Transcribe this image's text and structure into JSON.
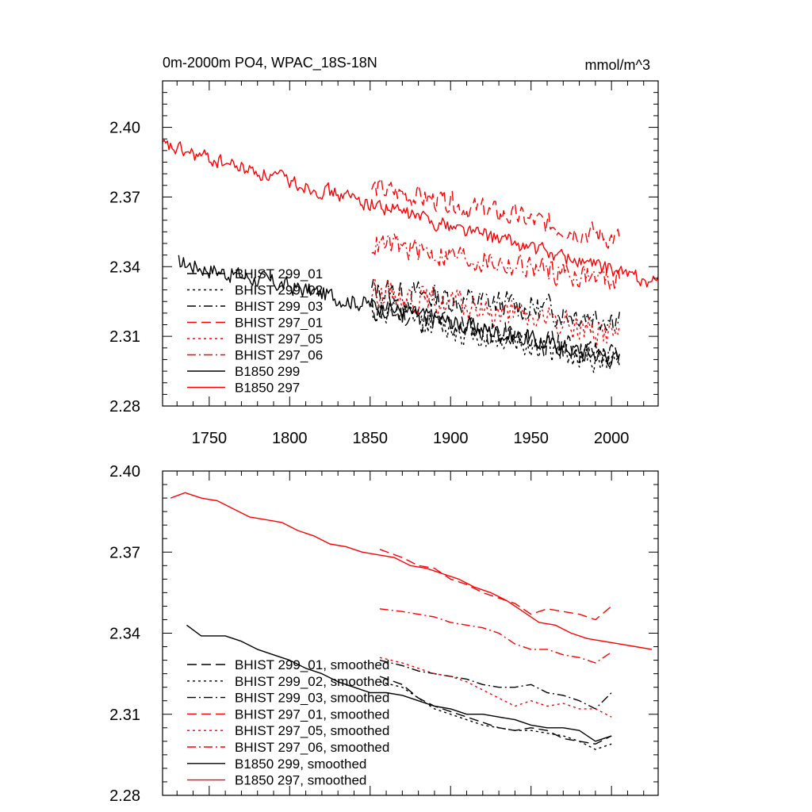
{
  "chart_data": [
    {
      "type": "line",
      "title": "0m-2000m PO4, WPAC_18S-18N",
      "units": "mmol/m^3",
      "xlim": [
        1721,
        2029
      ],
      "ylim": [
        2.28,
        2.42
      ],
      "x_ticks": [
        1750,
        1800,
        1850,
        1900,
        1950,
        2000
      ],
      "x_tick_labels": [
        "1750",
        "1800",
        "1850",
        "1900",
        "1950",
        "2000"
      ],
      "y_ticks": [
        2.28,
        2.31,
        2.34,
        2.37,
        2.4
      ],
      "y_tick_labels": [
        "2.28",
        "2.31",
        "2.34",
        "2.37",
        "2.40"
      ],
      "legend_position": "lower-left",
      "series": [
        {
          "name": "BHIST 299_01",
          "color": "#000000",
          "dash": "dash",
          "x_start": 1851,
          "x_end": 2005,
          "start": 2.322,
          "end": 2.301,
          "noise": 0.0055,
          "seed": 11
        },
        {
          "name": "BHIST 299_02",
          "color": "#000000",
          "dash": "dot",
          "x_start": 1851,
          "x_end": 2005,
          "start": 2.321,
          "end": 2.298,
          "noise": 0.0055,
          "seed": 12
        },
        {
          "name": "BHIST 299_03",
          "color": "#000000",
          "dash": "dashdot",
          "x_start": 1851,
          "x_end": 2005,
          "start": 2.33,
          "end": 2.318,
          "noise": 0.0055,
          "seed": 13
        },
        {
          "name": "BHIST 297_01",
          "color": "#ff0000",
          "dash": "dash",
          "x_start": 1851,
          "x_end": 2005,
          "start": 2.374,
          "end": 2.352,
          "noise": 0.0045,
          "seed": 14
        },
        {
          "name": "BHIST 297_05",
          "color": "#ff0000",
          "dash": "dot",
          "x_start": 1851,
          "x_end": 2005,
          "start": 2.33,
          "end": 2.311,
          "noise": 0.0055,
          "seed": 15
        },
        {
          "name": "BHIST 297_06",
          "color": "#ff0000",
          "dash": "dashdot",
          "x_start": 1851,
          "x_end": 2005,
          "start": 2.35,
          "end": 2.334,
          "noise": 0.005,
          "seed": 16
        },
        {
          "name": "B1850 299",
          "color": "#000000",
          "dash": "solid",
          "x_start": 1731,
          "x_end": 2005,
          "start": 2.342,
          "end": 2.3,
          "noise": 0.0035,
          "seed": 17
        },
        {
          "name": "B1850 297",
          "color": "#ff0000",
          "dash": "solid",
          "x_start": 1721,
          "x_end": 2029,
          "start": 2.392,
          "end": 2.333,
          "noise": 0.003,
          "seed": 18
        }
      ]
    },
    {
      "type": "line",
      "xlim": [
        1721,
        2029
      ],
      "ylim": [
        2.28,
        2.4
      ],
      "y_ticks": [
        2.28,
        2.31,
        2.34,
        2.37,
        2.4
      ],
      "y_tick_labels": [
        "2.28",
        "2.31",
        "2.34",
        "2.37",
        "2.40"
      ],
      "x_ticks": [
        1750,
        1800,
        1850,
        1900,
        1950,
        2000
      ],
      "legend_position": "lower-left",
      "series": [
        {
          "name": "BHIST 299_01, smoothed",
          "color": "#000000",
          "dash": "dash",
          "points": [
            [
              1856,
              2.324
            ],
            [
              1870,
              2.321
            ],
            [
              1880,
              2.316
            ],
            [
              1890,
              2.313
            ],
            [
              1900,
              2.311
            ],
            [
              1910,
              2.309
            ],
            [
              1920,
              2.307
            ],
            [
              1930,
              2.305
            ],
            [
              1940,
              2.304
            ],
            [
              1950,
              2.305
            ],
            [
              1960,
              2.304
            ],
            [
              1970,
              2.301
            ],
            [
              1980,
              2.3
            ],
            [
              1990,
              2.299
            ],
            [
              2000,
              2.302
            ]
          ]
        },
        {
          "name": "BHIST 299_02, smoothed",
          "color": "#000000",
          "dash": "dot",
          "points": [
            [
              1856,
              2.322
            ],
            [
              1870,
              2.32
            ],
            [
              1880,
              2.316
            ],
            [
              1890,
              2.312
            ],
            [
              1900,
              2.31
            ],
            [
              1910,
              2.308
            ],
            [
              1920,
              2.306
            ],
            [
              1930,
              2.305
            ],
            [
              1940,
              2.304
            ],
            [
              1950,
              2.304
            ],
            [
              1960,
              2.303
            ],
            [
              1970,
              2.302
            ],
            [
              1980,
              2.3
            ],
            [
              1990,
              2.297
            ],
            [
              2000,
              2.299
            ]
          ]
        },
        {
          "name": "BHIST 299_03, smoothed",
          "color": "#000000",
          "dash": "dashdot",
          "points": [
            [
              1856,
              2.33
            ],
            [
              1870,
              2.328
            ],
            [
              1880,
              2.326
            ],
            [
              1890,
              2.325
            ],
            [
              1900,
              2.324
            ],
            [
              1910,
              2.323
            ],
            [
              1920,
              2.321
            ],
            [
              1930,
              2.32
            ],
            [
              1940,
              2.32
            ],
            [
              1950,
              2.321
            ],
            [
              1960,
              2.318
            ],
            [
              1970,
              2.317
            ],
            [
              1980,
              2.315
            ],
            [
              1990,
              2.312
            ],
            [
              2000,
              2.318
            ]
          ]
        },
        {
          "name": "BHIST 297_01, smoothed",
          "color": "#ff0000",
          "dash": "dash",
          "points": [
            [
              1856,
              2.371
            ],
            [
              1870,
              2.368
            ],
            [
              1880,
              2.365
            ],
            [
              1890,
              2.364
            ],
            [
              1900,
              2.36
            ],
            [
              1910,
              2.358
            ],
            [
              1920,
              2.355
            ],
            [
              1930,
              2.353
            ],
            [
              1940,
              2.351
            ],
            [
              1950,
              2.347
            ],
            [
              1960,
              2.349
            ],
            [
              1970,
              2.348
            ],
            [
              1980,
              2.347
            ],
            [
              1990,
              2.345
            ],
            [
              2000,
              2.35
            ]
          ]
        },
        {
          "name": "BHIST 297_05, smoothed",
          "color": "#ff0000",
          "dash": "dot",
          "points": [
            [
              1856,
              2.331
            ],
            [
              1870,
              2.329
            ],
            [
              1880,
              2.327
            ],
            [
              1890,
              2.325
            ],
            [
              1900,
              2.324
            ],
            [
              1910,
              2.322
            ],
            [
              1920,
              2.319
            ],
            [
              1930,
              2.316
            ],
            [
              1940,
              2.313
            ],
            [
              1950,
              2.315
            ],
            [
              1960,
              2.313
            ],
            [
              1970,
              2.314
            ],
            [
              1980,
              2.312
            ],
            [
              1990,
              2.312
            ],
            [
              2000,
              2.309
            ]
          ]
        },
        {
          "name": "BHIST 297_06, smoothed",
          "color": "#ff0000",
          "dash": "dashdot",
          "points": [
            [
              1856,
              2.349
            ],
            [
              1870,
              2.348
            ],
            [
              1880,
              2.347
            ],
            [
              1890,
              2.346
            ],
            [
              1900,
              2.344
            ],
            [
              1910,
              2.343
            ],
            [
              1920,
              2.342
            ],
            [
              1930,
              2.34
            ],
            [
              1940,
              2.336
            ],
            [
              1950,
              2.334
            ],
            [
              1960,
              2.334
            ],
            [
              1970,
              2.332
            ],
            [
              1980,
              2.331
            ],
            [
              1990,
              2.329
            ],
            [
              2000,
              2.333
            ]
          ]
        },
        {
          "name": "B1850 299, smoothed",
          "color": "#000000",
          "dash": "solid",
          "points": [
            [
              1736,
              2.343
            ],
            [
              1745,
              2.339
            ],
            [
              1760,
              2.339
            ],
            [
              1770,
              2.337
            ],
            [
              1780,
              2.334
            ],
            [
              1790,
              2.332
            ],
            [
              1800,
              2.33
            ],
            [
              1810,
              2.327
            ],
            [
              1820,
              2.325
            ],
            [
              1830,
              2.322
            ],
            [
              1840,
              2.32
            ],
            [
              1850,
              2.318
            ],
            [
              1860,
              2.318
            ],
            [
              1870,
              2.317
            ],
            [
              1880,
              2.315
            ],
            [
              1890,
              2.313
            ],
            [
              1900,
              2.312
            ],
            [
              1910,
              2.31
            ],
            [
              1920,
              2.31
            ],
            [
              1930,
              2.309
            ],
            [
              1940,
              2.308
            ],
            [
              1950,
              2.306
            ],
            [
              1960,
              2.305
            ],
            [
              1970,
              2.305
            ],
            [
              1980,
              2.304
            ],
            [
              1990,
              2.3
            ],
            [
              2000,
              2.302
            ]
          ]
        },
        {
          "name": "B1850 297, smoothed",
          "color": "#ff0000",
          "dash": "solid",
          "points": [
            [
              1726,
              2.39
            ],
            [
              1735,
              2.392
            ],
            [
              1745,
              2.39
            ],
            [
              1755,
              2.389
            ],
            [
              1765,
              2.386
            ],
            [
              1775,
              2.383
            ],
            [
              1785,
              2.382
            ],
            [
              1795,
              2.381
            ],
            [
              1805,
              2.378
            ],
            [
              1815,
              2.376
            ],
            [
              1825,
              2.373
            ],
            [
              1835,
              2.372
            ],
            [
              1845,
              2.37
            ],
            [
              1855,
              2.369
            ],
            [
              1865,
              2.368
            ],
            [
              1875,
              2.365
            ],
            [
              1885,
              2.364
            ],
            [
              1895,
              2.362
            ],
            [
              1905,
              2.36
            ],
            [
              1915,
              2.357
            ],
            [
              1925,
              2.355
            ],
            [
              1935,
              2.352
            ],
            [
              1945,
              2.348
            ],
            [
              1955,
              2.344
            ],
            [
              1965,
              2.343
            ],
            [
              1975,
              2.34
            ],
            [
              1985,
              2.338
            ],
            [
              1995,
              2.337
            ],
            [
              2005,
              2.336
            ],
            [
              2015,
              2.335
            ],
            [
              2025,
              2.334
            ]
          ]
        }
      ]
    }
  ]
}
